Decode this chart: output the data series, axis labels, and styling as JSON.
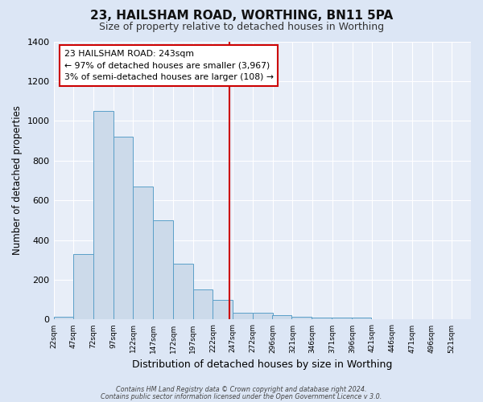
{
  "title": "23, HAILSHAM ROAD, WORTHING, BN11 5PA",
  "subtitle": "Size of property relative to detached houses in Worthing",
  "xlabel": "Distribution of detached houses by size in Worthing",
  "ylabel": "Number of detached properties",
  "annotation_title": "23 HAILSHAM ROAD: 243sqm",
  "annotation_line1": "← 97% of detached houses are smaller (3,967)",
  "annotation_line2": "3% of semi-detached houses are larger (108) →",
  "bin_starts": [
    22,
    47,
    72,
    97,
    122,
    147,
    172,
    197,
    222,
    247,
    272,
    296,
    321,
    346,
    371,
    396,
    421,
    446,
    471,
    496
  ],
  "bin_width": 25,
  "bar_values": [
    15,
    330,
    1050,
    920,
    670,
    500,
    280,
    150,
    100,
    35,
    35,
    20,
    15,
    10,
    10,
    10,
    0,
    0,
    0,
    0
  ],
  "bar_color": "#ccdaea",
  "bar_edge_color": "#5a9fc8",
  "vline_color": "#cc0000",
  "vline_x": 243,
  "ylim": [
    0,
    1400
  ],
  "yticks": [
    0,
    200,
    400,
    600,
    800,
    1000,
    1200,
    1400
  ],
  "xlim_left": 22,
  "xlim_right": 546,
  "background_color": "#dce6f5",
  "plot_bg_color": "#e8eef8",
  "grid_color": "#ffffff",
  "tick_labels": [
    "22sqm",
    "47sqm",
    "72sqm",
    "97sqm",
    "122sqm",
    "147sqm",
    "172sqm",
    "197sqm",
    "222sqm",
    "247sqm",
    "272sqm",
    "296sqm",
    "321sqm",
    "346sqm",
    "371sqm",
    "396sqm",
    "421sqm",
    "446sqm",
    "471sqm",
    "496sqm",
    "521sqm"
  ],
  "footer_line1": "Contains HM Land Registry data © Crown copyright and database right 2024.",
  "footer_line2": "Contains public sector information licensed under the Open Government Licence v 3.0."
}
